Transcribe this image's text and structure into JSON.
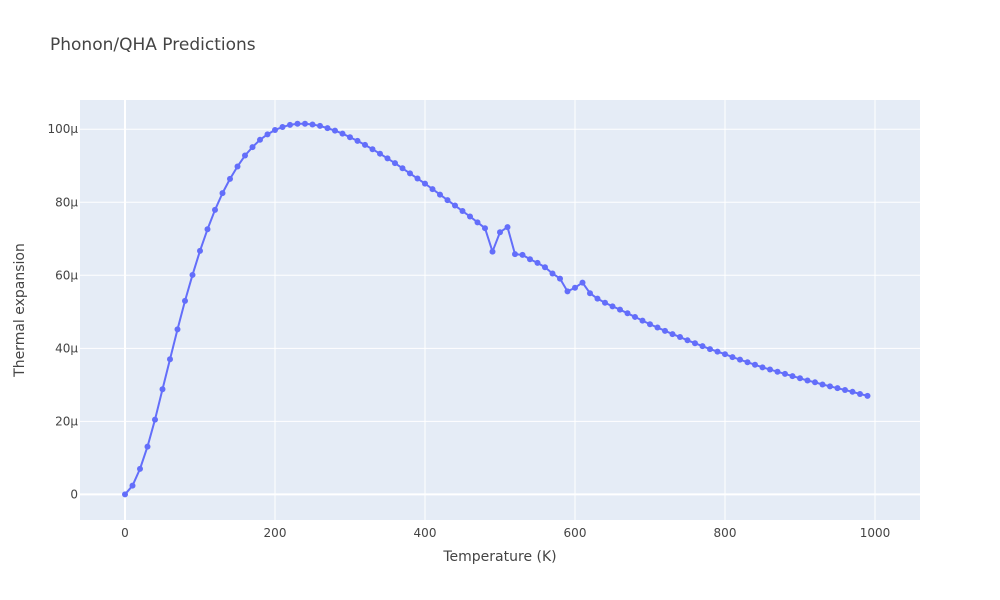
{
  "chart_data": {
    "type": "line",
    "title": "Phonon/QHA Predictions",
    "xlabel": "Temperature (K)",
    "ylabel": "Thermal expansion",
    "xlim": [
      -60,
      1060
    ],
    "ylim": [
      -7,
      108
    ],
    "x_ticks": [
      0,
      200,
      400,
      600,
      800,
      1000
    ],
    "x_tick_labels": [
      "0",
      "200",
      "400",
      "600",
      "800",
      "1000"
    ],
    "y_ticks": [
      0,
      20,
      40,
      60,
      80,
      100
    ],
    "y_tick_labels": [
      "0",
      "20µ",
      "40µ",
      "60µ",
      "80µ",
      "100µ"
    ],
    "y_unit": "µ",
    "grid": true,
    "legend": "none",
    "colors": {
      "series": "#636efa",
      "plot_bg": "#e5ecf6",
      "grid": "#ffffff",
      "text": "#444444"
    },
    "series": [
      {
        "x": [
          0,
          10,
          20,
          30,
          40,
          50,
          60,
          70,
          80,
          90,
          100,
          110,
          120,
          130,
          140,
          150,
          160,
          170,
          180,
          190,
          200,
          210,
          220,
          230,
          240,
          250,
          260,
          270,
          280,
          290,
          300,
          310,
          320,
          330,
          340,
          350,
          360,
          370,
          380,
          390,
          400,
          410,
          420,
          430,
          440,
          450,
          460,
          470,
          480,
          490,
          500,
          510,
          520,
          530,
          540,
          550,
          560,
          570,
          580,
          590,
          600,
          610,
          620,
          630,
          640,
          650,
          660,
          670,
          680,
          690,
          700,
          710,
          720,
          730,
          740,
          750,
          760,
          770,
          780,
          790,
          800,
          810,
          820,
          830,
          840,
          850,
          860,
          870,
          880,
          890,
          900,
          910,
          920,
          930,
          940,
          950,
          960,
          970,
          980,
          990
        ],
        "values": [
          0,
          2.4,
          7,
          13.1,
          20.5,
          28.8,
          37,
          45.2,
          53,
          60.1,
          66.7,
          72.6,
          77.9,
          82.5,
          86.4,
          89.8,
          92.8,
          95.1,
          97.1,
          98.6,
          99.8,
          100.6,
          101.2,
          101.5,
          101.5,
          101.3,
          100.9,
          100.3,
          99.6,
          98.8,
          97.8,
          96.8,
          95.7,
          94.5,
          93.3,
          92,
          90.7,
          89.3,
          87.9,
          86.5,
          85.1,
          83.6,
          82.1,
          80.6,
          79.1,
          77.6,
          76.1,
          74.5,
          72.9,
          66.5,
          71.8,
          73.2,
          65.8,
          65.6,
          64.4,
          63.4,
          62.2,
          60.5,
          59.1,
          55.6,
          56.6,
          58,
          55.1,
          53.6,
          52.5,
          51.5,
          50.6,
          49.6,
          48.6,
          47.6,
          46.6,
          45.7,
          44.8,
          43.9,
          43.1,
          42.2,
          41.4,
          40.6,
          39.8,
          39.1,
          38.4,
          37.6,
          36.9,
          36.2,
          35.5,
          34.8,
          34.2,
          33.6,
          33,
          32.4,
          31.8,
          31.2,
          30.7,
          30.1,
          29.6,
          29.1,
          28.6,
          28.1,
          27.5,
          27
        ]
      }
    ]
  }
}
